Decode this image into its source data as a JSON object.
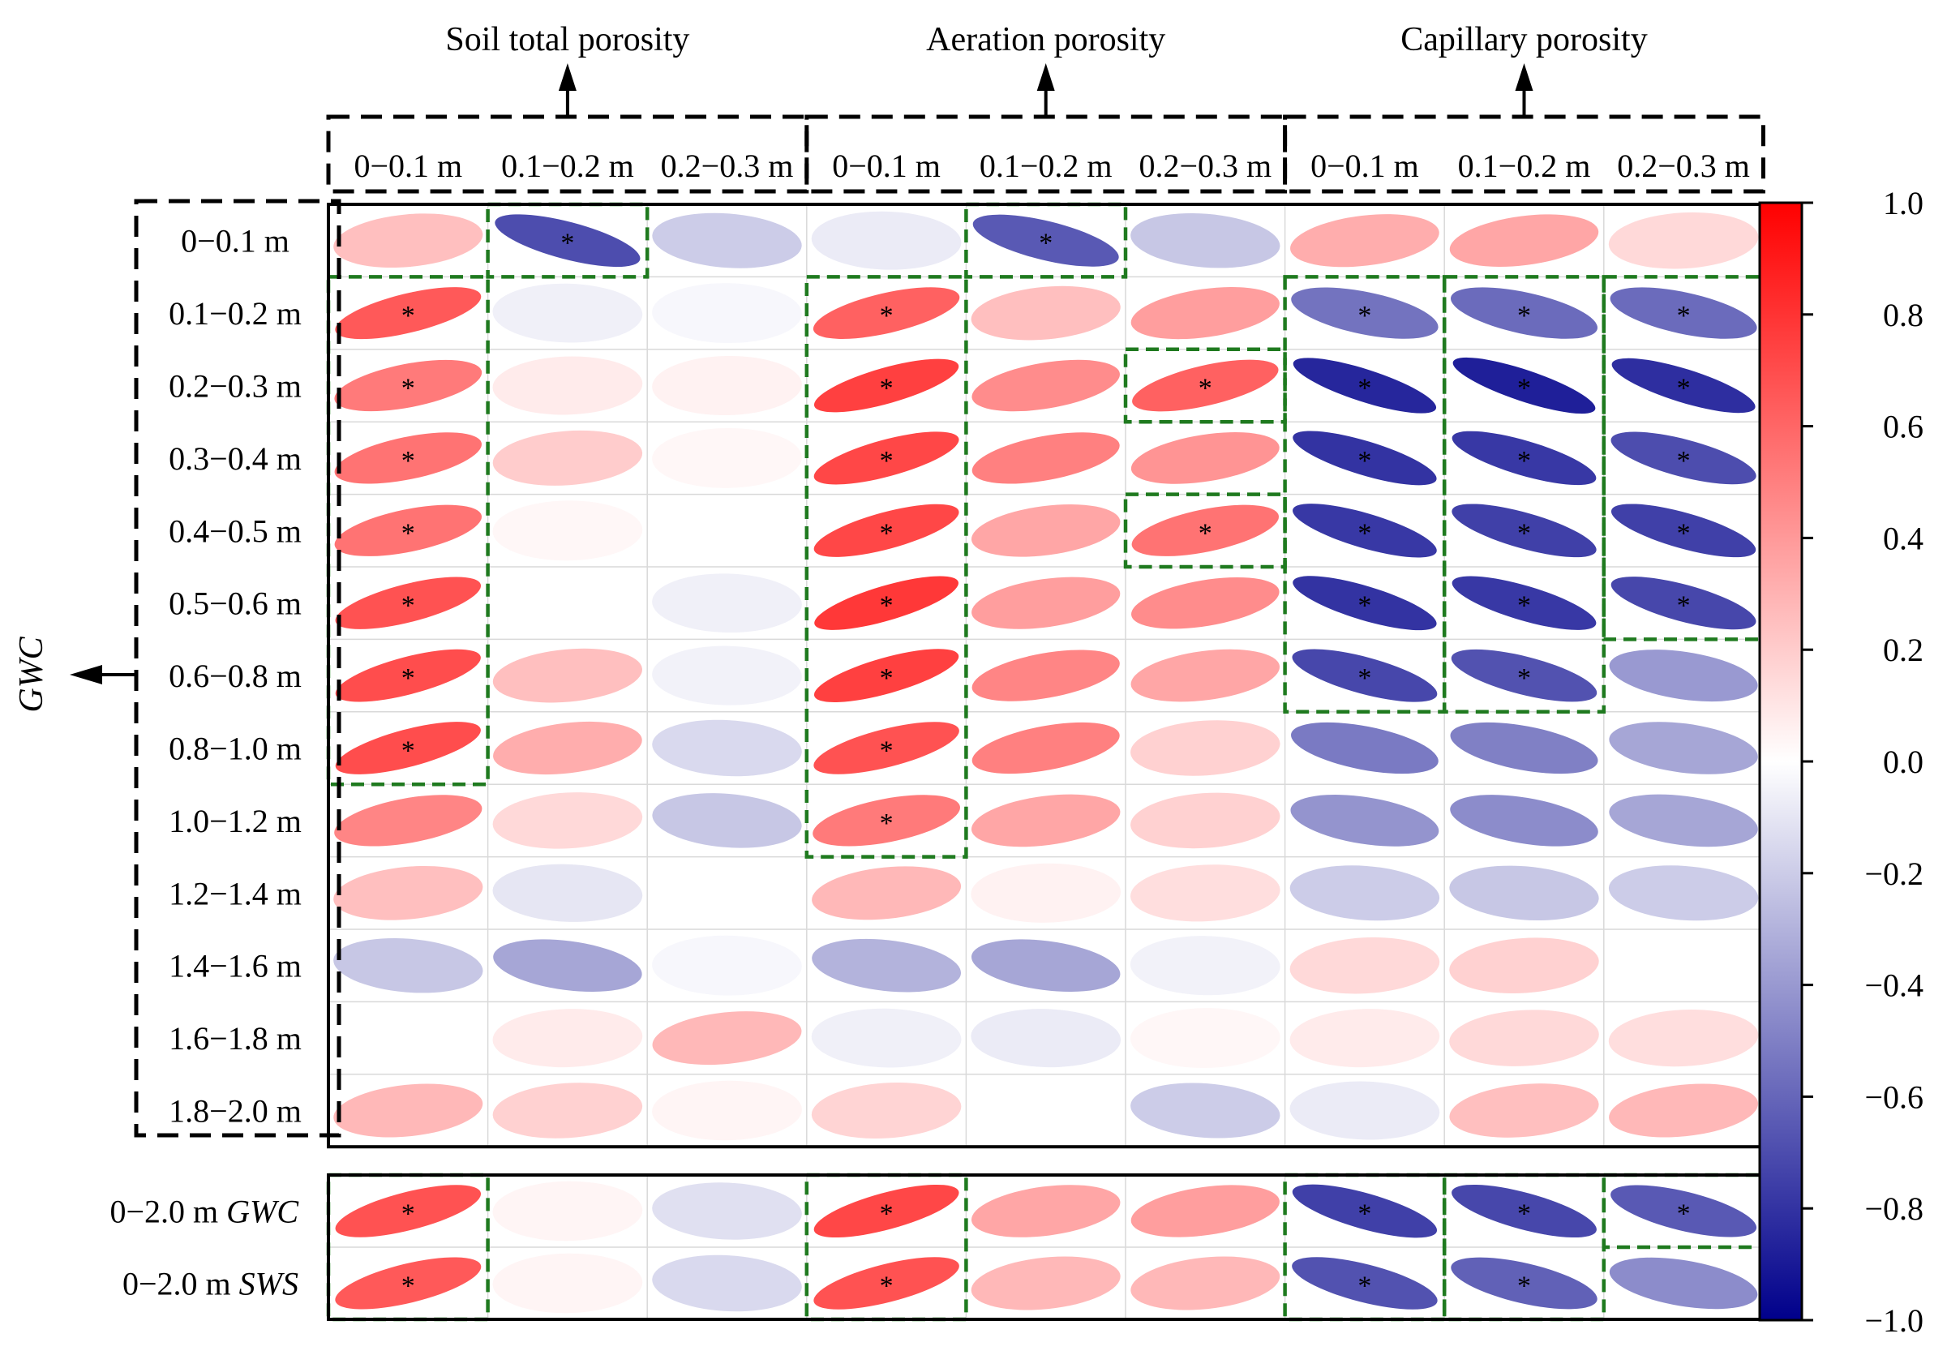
{
  "chart_data": {
    "type": "heatmap",
    "title": "",
    "group_labels": [
      "Soil total porosity",
      "Aeration porosity",
      "Capillary porosity"
    ],
    "columns": [
      "0−0.1 m",
      "0.1−0.2 m",
      "0.2−0.3 m",
      "0−0.1 m",
      "0.1−0.2 m",
      "0.2−0.3 m",
      "0−0.1 m",
      "0.1−0.2 m",
      "0.2−0.3 m"
    ],
    "rows": [
      "0−0.1 m",
      "0.1−0.2 m",
      "0.2−0.3 m",
      "0.3−0.4 m",
      "0.4−0.5 m",
      "0.5−0.6 m",
      "0.6−0.8 m",
      "0.8−1.0 m",
      "1.0−1.2 m",
      "1.2−1.4 m",
      "1.4−1.6 m",
      "1.6−1.8 m",
      "1.8−2.0 m"
    ],
    "row_group_label": "GWC",
    "values": [
      [
        0.25,
        -0.7,
        -0.2,
        -0.08,
        -0.65,
        -0.22,
        0.32,
        0.35,
        0.15
      ],
      [
        0.65,
        -0.06,
        -0.03,
        0.62,
        0.25,
        0.38,
        -0.55,
        -0.58,
        -0.58
      ],
      [
        0.52,
        0.08,
        0.05,
        0.75,
        0.45,
        0.62,
        -0.85,
        -0.88,
        -0.82
      ],
      [
        0.55,
        0.2,
        0.03,
        0.72,
        0.5,
        0.42,
        -0.8,
        -0.78,
        -0.7
      ],
      [
        0.55,
        0.03,
        0.0,
        0.72,
        0.35,
        0.55,
        -0.78,
        -0.75,
        -0.75
      ],
      [
        0.68,
        0.0,
        -0.06,
        0.78,
        0.38,
        0.45,
        -0.8,
        -0.78,
        -0.72
      ],
      [
        0.7,
        0.25,
        -0.05,
        0.75,
        0.48,
        0.35,
        -0.72,
        -0.68,
        -0.4
      ],
      [
        0.7,
        0.32,
        -0.15,
        0.68,
        0.5,
        0.18,
        -0.52,
        -0.5,
        -0.35
      ],
      [
        0.48,
        0.15,
        -0.22,
        0.52,
        0.35,
        0.18,
        -0.42,
        -0.45,
        -0.35
      ],
      [
        0.25,
        -0.1,
        0.0,
        0.28,
        0.05,
        0.13,
        -0.2,
        -0.22,
        -0.2
      ],
      [
        -0.22,
        -0.35,
        -0.03,
        -0.3,
        -0.35,
        -0.05,
        0.15,
        0.18,
        0.0
      ],
      [
        0.0,
        0.08,
        0.28,
        -0.06,
        -0.08,
        0.03,
        0.08,
        0.15,
        0.13
      ],
      [
        0.28,
        0.18,
        0.04,
        0.17,
        0.0,
        -0.2,
        -0.08,
        0.25,
        0.28
      ]
    ],
    "significant": [
      [
        false,
        true,
        false,
        false,
        true,
        false,
        false,
        false,
        false
      ],
      [
        true,
        false,
        false,
        true,
        false,
        false,
        true,
        true,
        true
      ],
      [
        true,
        false,
        false,
        true,
        false,
        true,
        true,
        true,
        true
      ],
      [
        true,
        false,
        false,
        true,
        false,
        false,
        true,
        true,
        true
      ],
      [
        true,
        false,
        false,
        true,
        false,
        true,
        true,
        true,
        true
      ],
      [
        true,
        false,
        false,
        true,
        false,
        false,
        true,
        true,
        true
      ],
      [
        true,
        false,
        false,
        true,
        false,
        false,
        true,
        true,
        false
      ],
      [
        true,
        false,
        false,
        true,
        false,
        false,
        false,
        false,
        false
      ],
      [
        false,
        false,
        false,
        true,
        false,
        false,
        false,
        false,
        false
      ],
      [
        false,
        false,
        false,
        false,
        false,
        false,
        false,
        false,
        false
      ],
      [
        false,
        false,
        false,
        false,
        false,
        false,
        false,
        false,
        false
      ],
      [
        false,
        false,
        false,
        false,
        false,
        false,
        false,
        false,
        false
      ],
      [
        false,
        false,
        false,
        false,
        false,
        false,
        false,
        false,
        false
      ]
    ],
    "bottom_rows": [
      {
        "prefix": "0−2.0 m ",
        "name": "GWC"
      },
      {
        "prefix": "0−2.0 m ",
        "name": "SWS"
      }
    ],
    "bottom_values": [
      [
        0.68,
        0.04,
        -0.12,
        0.72,
        0.35,
        0.38,
        -0.75,
        -0.72,
        -0.65
      ],
      [
        0.65,
        0.04,
        -0.15,
        0.68,
        0.28,
        0.28,
        -0.68,
        -0.62,
        -0.45
      ]
    ],
    "bottom_significant": [
      [
        true,
        false,
        false,
        true,
        false,
        false,
        true,
        true,
        true
      ],
      [
        true,
        false,
        false,
        true,
        false,
        false,
        true,
        true,
        false
      ]
    ],
    "significance_marker": "*",
    "colorbar": {
      "range": [
        -1.0,
        1.0
      ],
      "ticks": [
        "1.0",
        "0.8",
        "0.6",
        "0.4",
        "0.2",
        "0.0",
        "−0.2",
        "−0.4",
        "−0.6",
        "−0.8",
        "−1.0"
      ],
      "colors": {
        "negative": "#00008b",
        "neutral": "#ffffff",
        "positive": "#ff0000"
      }
    },
    "highlight_color": "#1f7a1f"
  }
}
